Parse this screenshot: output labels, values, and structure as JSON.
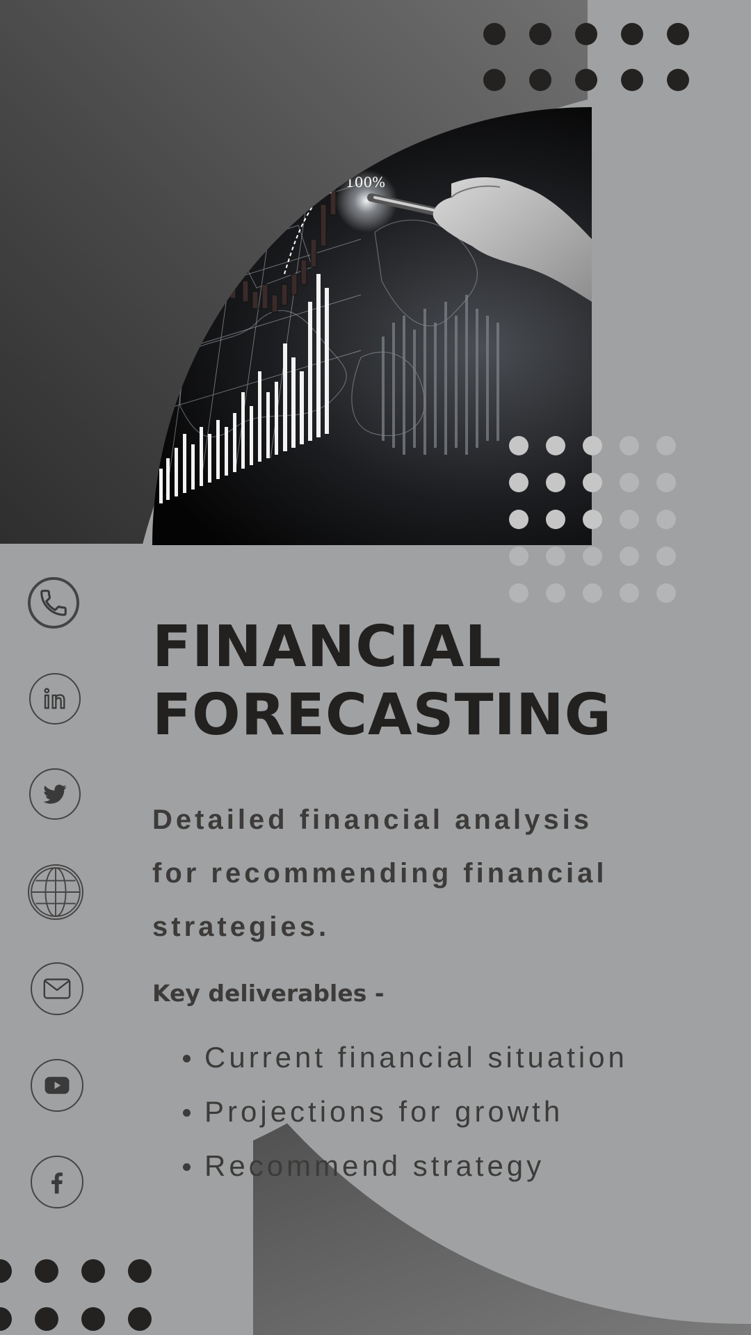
{
  "poster": {
    "title_line1": "FINANCIAL",
    "title_line2": "FORECASTING",
    "description": "Detailed financial analysis for recommending financial strategies.",
    "deliverables_heading": "Key deliverables -",
    "deliverables": [
      "Current financial situation",
      "Projections for growth",
      "Recommend strategy"
    ]
  },
  "hero_image": {
    "subject": "hand drawing an upward stock chart over a digital world map",
    "chart_label": "100%"
  },
  "social_icons": [
    "phone-icon",
    "linkedin-icon",
    "twitter-icon",
    "globe-icon",
    "email-icon",
    "youtube-icon",
    "facebook-icon"
  ],
  "colors": {
    "background": "#a0a1a2",
    "dark_gradient_start": "#2e2e2e",
    "dark_gradient_end": "#7a7a7a",
    "title_text": "#222120",
    "body_text": "#3c3b3a",
    "dark_dot": "#232220",
    "light_dot": "#c6c6c6"
  }
}
